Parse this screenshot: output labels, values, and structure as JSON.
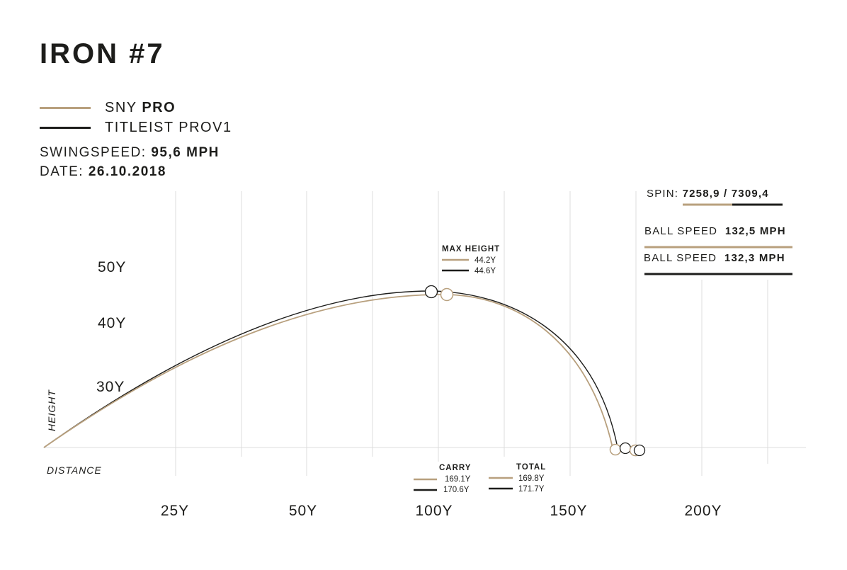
{
  "title": "IRON #7",
  "legend": [
    {
      "prefix": "SNY ",
      "bold": "PRO",
      "color": "#b8a07e"
    },
    {
      "prefix": "TITLEIST PROV1",
      "bold": "",
      "color": "#1d1d1b"
    }
  ],
  "meta": {
    "swingspeed_label": "SWINGSPEED:",
    "swingspeed_value": "95,6 MPH",
    "date_label": "DATE:",
    "date_value": "26.10.2018"
  },
  "stats": {
    "spin_label": "SPIN:",
    "spin_value": "7258,9 / 7309,4",
    "ball_speed_label_1": "BALL SPEED",
    "ball_speed_value_1": "132,5 MPH",
    "ball_speed_label_2": "BALL SPEED",
    "ball_speed_value_2": "132,3 MPH"
  },
  "colors": {
    "sny": "#b8a07e",
    "titleist": "#1d1d1b",
    "grid": "#d9d9d9"
  },
  "chart_data": {
    "type": "line",
    "xlabel": "DISTANCE",
    "ylabel": "HEIGHT",
    "x_ticks": [
      "25Y",
      "50Y",
      "100Y",
      "150Y",
      "200Y"
    ],
    "y_ticks": [
      "30Y",
      "40Y",
      "50Y"
    ],
    "annotations": {
      "max_height": {
        "label": "MAX HEIGHT",
        "values": [
          "44.2Y",
          "44.6Y"
        ]
      },
      "carry": {
        "label": "CARRY",
        "values": [
          "169.1Y",
          "170.6Y"
        ]
      },
      "total": {
        "label": "TOTAL",
        "values": [
          "169.8Y",
          "171.7Y"
        ]
      }
    },
    "series": [
      {
        "name": "SNY PRO",
        "color": "#b8a07e",
        "max_height": 44.2,
        "carry": 169.1,
        "total": 169.8
      },
      {
        "name": "TITLEIST PROV1",
        "color": "#1d1d1b",
        "max_height": 44.6,
        "carry": 170.6,
        "total": 171.7
      }
    ]
  }
}
